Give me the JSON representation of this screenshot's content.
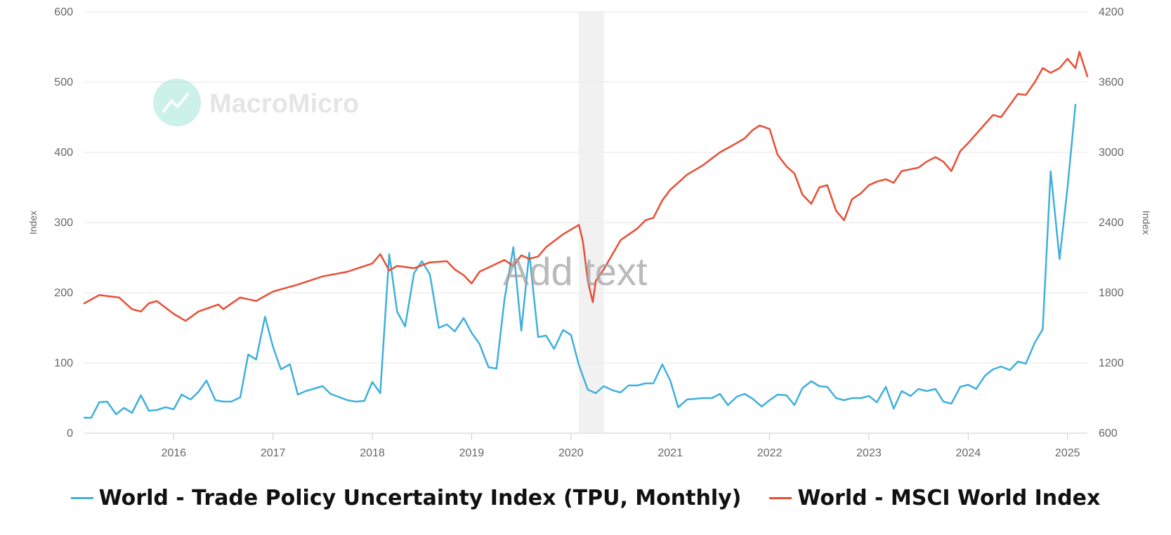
{
  "chart_data": {
    "type": "line",
    "title": "",
    "watermark": "MacroMicro",
    "annotation": "Add text",
    "x_range": [
      2015.1,
      2025.2
    ],
    "x_ticks": [
      "2016",
      "2017",
      "2018",
      "2019",
      "2020",
      "2021",
      "2022",
      "2023",
      "2024",
      "2025"
    ],
    "y_left": {
      "label": "Index",
      "range": [
        0,
        600
      ],
      "ticks": [
        "0",
        "100",
        "200",
        "300",
        "400",
        "500",
        "600"
      ]
    },
    "y_right": {
      "label": "Index",
      "range": [
        600,
        4200
      ],
      "ticks": [
        "600",
        "1200",
        "1800",
        "2400",
        "3000",
        "3600",
        "4200"
      ]
    },
    "shaded_region": {
      "from": 2020.08,
      "to": 2020.33
    },
    "series": [
      {
        "name": "World - Trade Policy Uncertainty Index (TPU, Monthly)",
        "axis": "left",
        "color": "#3fb0dc",
        "x": [
          2015.1,
          2015.17,
          2015.25,
          2015.33,
          2015.42,
          2015.5,
          2015.58,
          2015.67,
          2015.75,
          2015.83,
          2015.92,
          2016.0,
          2016.08,
          2016.17,
          2016.25,
          2016.33,
          2016.42,
          2016.5,
          2016.58,
          2016.67,
          2016.75,
          2016.83,
          2016.92,
          2017.0,
          2017.08,
          2017.17,
          2017.25,
          2017.33,
          2017.5,
          2017.58,
          2017.75,
          2017.83,
          2017.92,
          2018.0,
          2018.08,
          2018.17,
          2018.25,
          2018.33,
          2018.42,
          2018.5,
          2018.58,
          2018.67,
          2018.75,
          2018.83,
          2018.92,
          2019.0,
          2019.08,
          2019.17,
          2019.25,
          2019.33,
          2019.42,
          2019.5,
          2019.58,
          2019.67,
          2019.75,
          2019.83,
          2019.92,
          2020.0,
          2020.08,
          2020.17,
          2020.25,
          2020.33,
          2020.42,
          2020.5,
          2020.58,
          2020.67,
          2020.75,
          2020.83,
          2020.92,
          2021.0,
          2021.08,
          2021.17,
          2021.33,
          2021.42,
          2021.5,
          2021.58,
          2021.67,
          2021.75,
          2021.83,
          2021.92,
          2022.0,
          2022.08,
          2022.17,
          2022.25,
          2022.33,
          2022.42,
          2022.5,
          2022.58,
          2022.67,
          2022.75,
          2022.83,
          2022.92,
          2023.0,
          2023.08,
          2023.17,
          2023.25,
          2023.33,
          2023.42,
          2023.5,
          2023.58,
          2023.67,
          2023.75,
          2023.83,
          2023.92,
          2024.0,
          2024.08,
          2024.17,
          2024.25,
          2024.33,
          2024.42,
          2024.5,
          2024.58,
          2024.67,
          2024.75,
          2024.83,
          2024.92,
          2025.0,
          2025.08
        ],
        "values": [
          22,
          22,
          44,
          45,
          27,
          36,
          29,
          54,
          32,
          33,
          37,
          34,
          55,
          48,
          59,
          75,
          47,
          45,
          45,
          51,
          112,
          105,
          166,
          123,
          91,
          98,
          55,
          60,
          67,
          56,
          47,
          45,
          46,
          73,
          57,
          255,
          173,
          152,
          228,
          245,
          226,
          150,
          155,
          145,
          164,
          143,
          127,
          94,
          92,
          190,
          265,
          146,
          257,
          137,
          139,
          120,
          147,
          140,
          97,
          62,
          57,
          67,
          61,
          58,
          68,
          68,
          71,
          71,
          98,
          75,
          37,
          48,
          50,
          50,
          56,
          40,
          52,
          56,
          49,
          38,
          47,
          55,
          54,
          40,
          64,
          74,
          67,
          66,
          50,
          47,
          50,
          50,
          53,
          44,
          66,
          35,
          60,
          53,
          63,
          60,
          63,
          45,
          42,
          66,
          69,
          63,
          82,
          91,
          95,
          90,
          102,
          99,
          129,
          148,
          373,
          248,
          350,
          468
        ]
      },
      {
        "name": "World - MSCI World Index",
        "axis": "right",
        "color": "#e84e34",
        "x": [
          2015.1,
          2015.25,
          2015.45,
          2015.58,
          2015.67,
          2015.75,
          2015.83,
          2016.0,
          2016.08,
          2016.12,
          2016.25,
          2016.45,
          2016.5,
          2016.67,
          2016.83,
          2017.0,
          2017.25,
          2017.5,
          2017.75,
          2018.0,
          2018.08,
          2018.17,
          2018.25,
          2018.42,
          2018.58,
          2018.75,
          2018.83,
          2018.92,
          2019.0,
          2019.08,
          2019.33,
          2019.42,
          2019.5,
          2019.58,
          2019.67,
          2019.75,
          2019.92,
          2020.08,
          2020.12,
          2020.17,
          2020.22,
          2020.25,
          2020.33,
          2020.5,
          2020.67,
          2020.75,
          2020.83,
          2020.92,
          2021.0,
          2021.17,
          2021.33,
          2021.5,
          2021.67,
          2021.75,
          2021.83,
          2021.9,
          2022.0,
          2022.08,
          2022.17,
          2022.25,
          2022.33,
          2022.42,
          2022.5,
          2022.58,
          2022.67,
          2022.75,
          2022.83,
          2022.92,
          2023.0,
          2023.08,
          2023.17,
          2023.25,
          2023.33,
          2023.5,
          2023.58,
          2023.67,
          2023.75,
          2023.83,
          2023.92,
          2024.0,
          2024.25,
          2024.33,
          2024.5,
          2024.58,
          2024.67,
          2024.75,
          2024.83,
          2024.92,
          2025.0,
          2025.08,
          2025.12,
          2025.2
        ],
        "values": [
          1710,
          1780,
          1760,
          1660,
          1640,
          1710,
          1730,
          1620,
          1580,
          1560,
          1640,
          1700,
          1660,
          1760,
          1730,
          1810,
          1870,
          1940,
          1980,
          2050,
          2130,
          1990,
          2030,
          2010,
          2060,
          2070,
          2000,
          1950,
          1880,
          1980,
          2080,
          2030,
          2120,
          2090,
          2110,
          2190,
          2300,
          2380,
          2240,
          1900,
          1720,
          1900,
          2000,
          2250,
          2350,
          2420,
          2440,
          2590,
          2680,
          2810,
          2890,
          3000,
          3080,
          3120,
          3190,
          3230,
          3200,
          2980,
          2880,
          2820,
          2640,
          2560,
          2700,
          2720,
          2500,
          2420,
          2600,
          2650,
          2720,
          2750,
          2770,
          2740,
          2840,
          2870,
          2920,
          2960,
          2920,
          2840,
          3010,
          3080,
          3320,
          3300,
          3500,
          3490,
          3600,
          3720,
          3680,
          3720,
          3800,
          3720,
          3860,
          3650
        ]
      }
    ]
  }
}
